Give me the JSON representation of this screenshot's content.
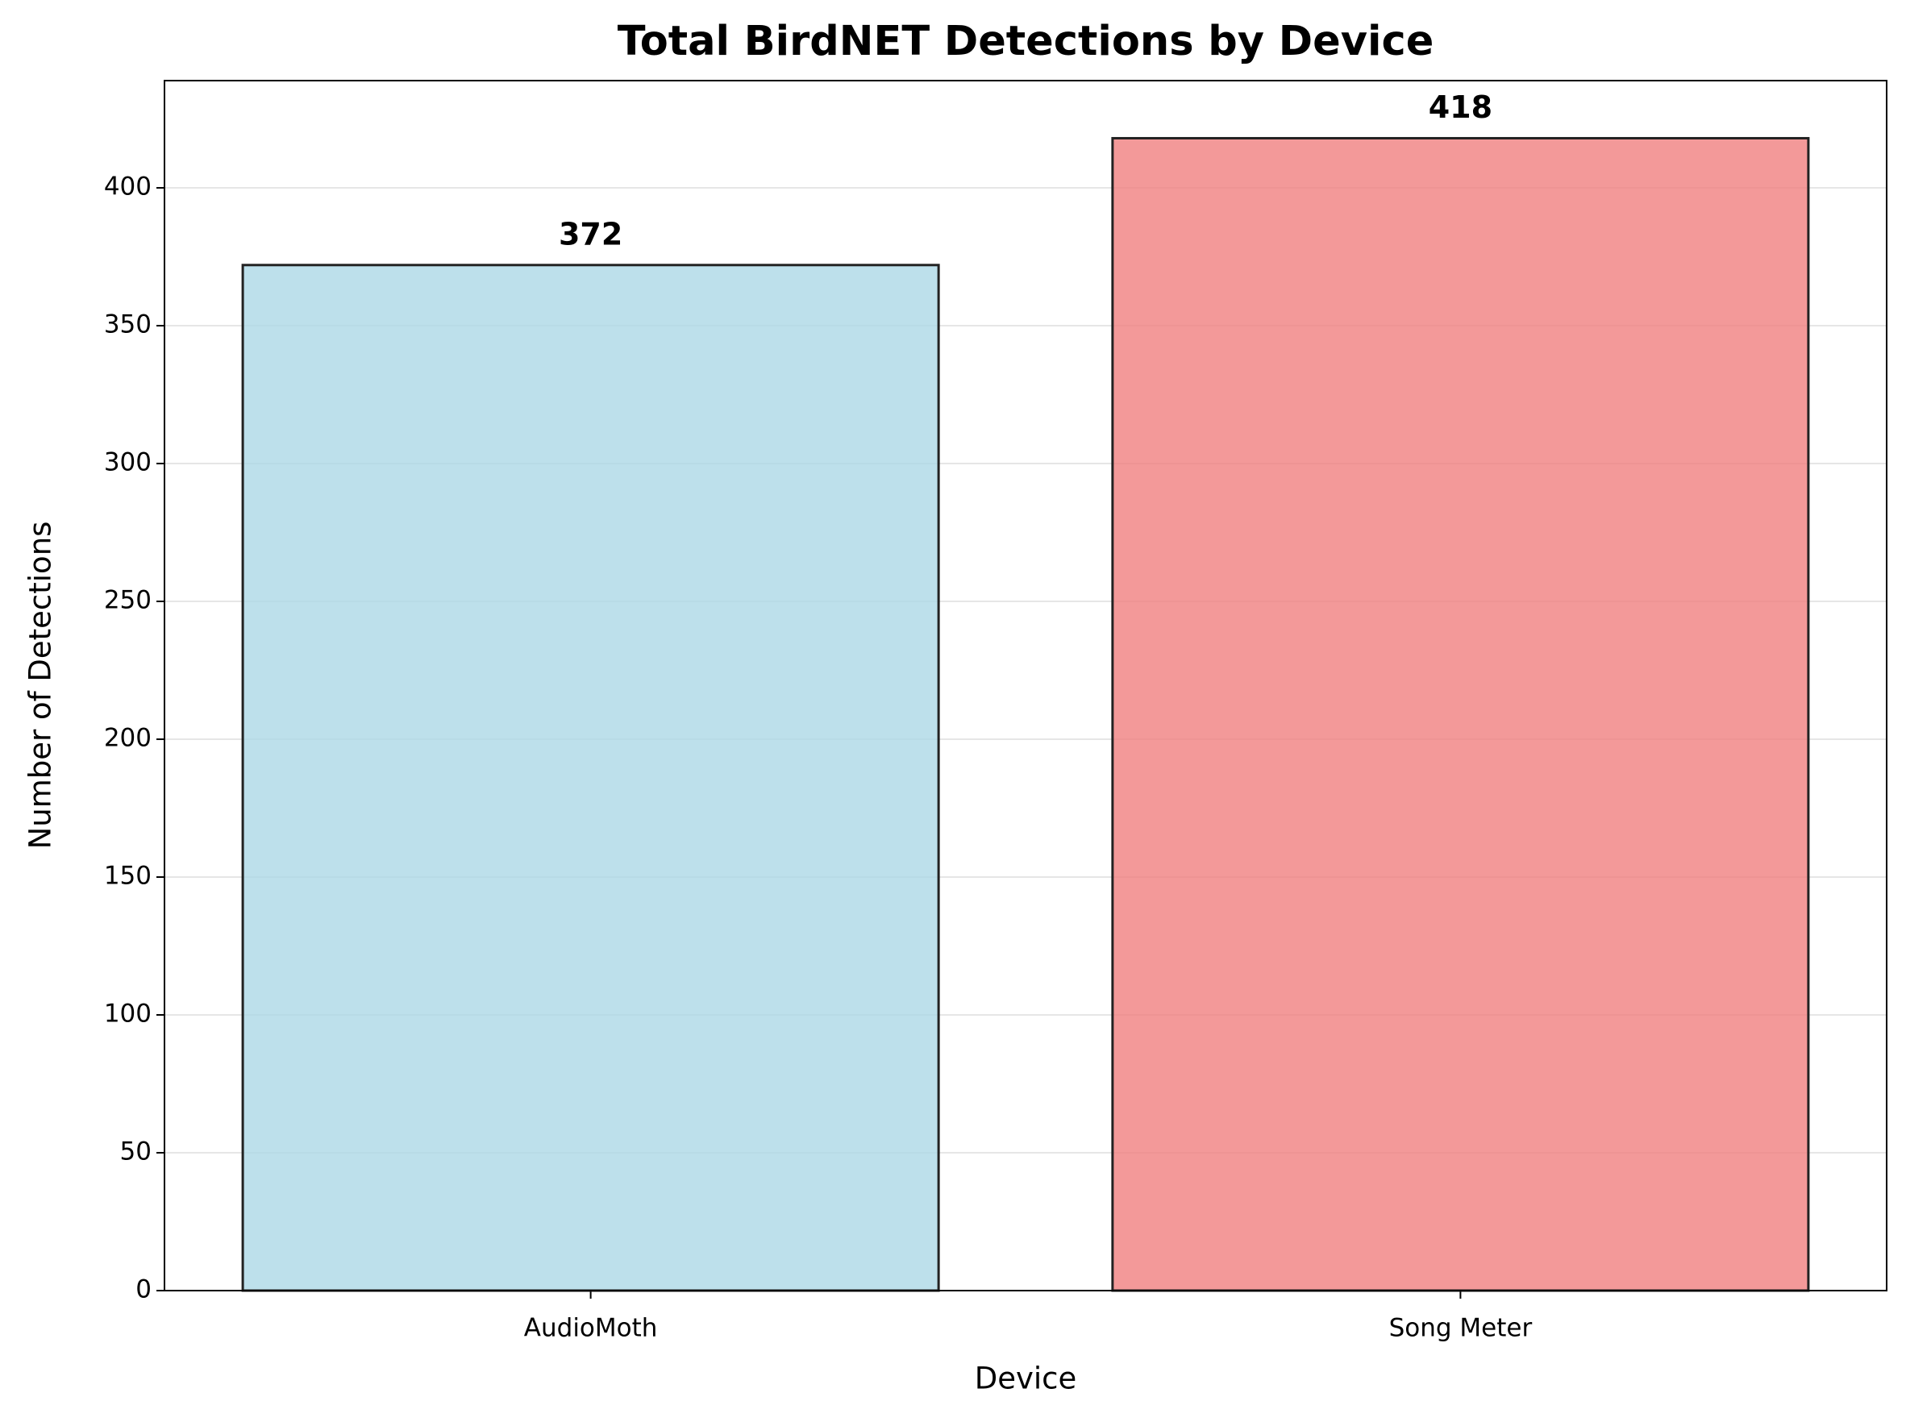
{
  "chart_data": {
    "type": "bar",
    "title": "Total BirdNET Detections by Device",
    "x_label": "Device",
    "y_label": "Number of Detections",
    "categories": [
      "AudioMoth",
      "Song Meter"
    ],
    "values": [
      372,
      418
    ],
    "colors": [
      "#add8e6",
      "#f08080"
    ],
    "ylim": [
      0,
      438.9
    ],
    "yticks": [
      0,
      50,
      100,
      150,
      200,
      250,
      300,
      350,
      400
    ],
    "grid": true
  }
}
